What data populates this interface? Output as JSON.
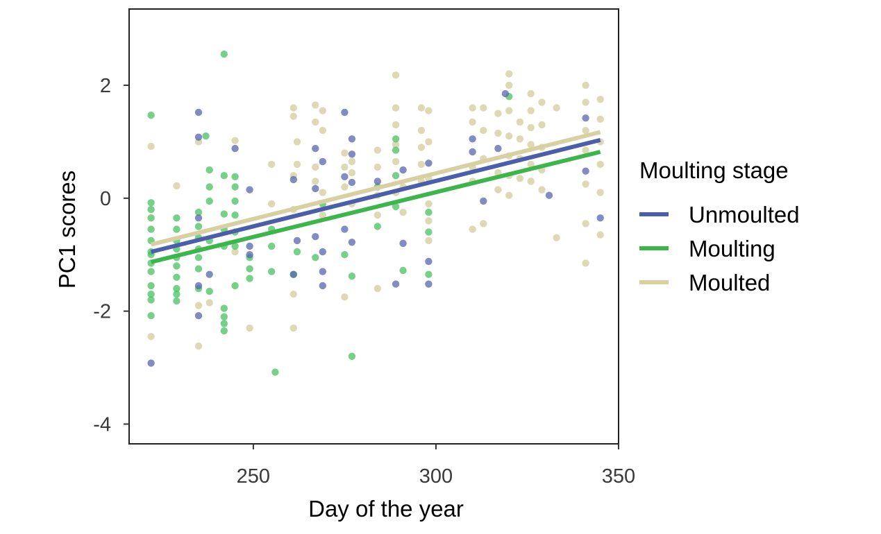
{
  "chart_data": {
    "type": "scatter",
    "title": "",
    "xlabel": "Day of the year",
    "ylabel": "PC1 scores",
    "xlim": [
      216,
      350
    ],
    "ylim": [
      -4.35,
      3.35
    ],
    "x_ticks": [
      250,
      300,
      350
    ],
    "y_ticks": [
      2,
      0,
      -2,
      -4
    ],
    "x_tick_labels": [
      "250",
      "300",
      "350"
    ],
    "y_tick_labels": [
      "2",
      "0",
      "-2",
      "-4"
    ],
    "grid": false,
    "legend": {
      "title": "Moulting stage",
      "position": "right"
    },
    "series": [
      {
        "name": "Unmoulted",
        "color": "#4a5eaa",
        "point_color": "#5565ad",
        "trend": {
          "x": [
            222,
            345
          ],
          "y": [
            -0.95,
            1.03
          ]
        },
        "points": [
          {
            "x": 222,
            "y": -2.92
          },
          {
            "x": 235,
            "y": 1.52
          },
          {
            "x": 235,
            "y": 1.08
          },
          {
            "x": 235,
            "y": -2.08
          },
          {
            "x": 235,
            "y": -1.55
          },
          {
            "x": 235,
            "y": -0.35
          },
          {
            "x": 238,
            "y": -1.35
          },
          {
            "x": 245,
            "y": 0.88
          },
          {
            "x": 249,
            "y": 0.15
          },
          {
            "x": 249,
            "y": -0.85
          },
          {
            "x": 249,
            "y": -1.0
          },
          {
            "x": 261,
            "y": 0.33
          },
          {
            "x": 261,
            "y": -1.35
          },
          {
            "x": 262,
            "y": -0.75
          },
          {
            "x": 267,
            "y": 0.88
          },
          {
            "x": 267,
            "y": 0.17
          },
          {
            "x": 267,
            "y": -0.68
          },
          {
            "x": 269,
            "y": 0.65
          },
          {
            "x": 269,
            "y": -1.55
          },
          {
            "x": 269,
            "y": -1.3
          },
          {
            "x": 269,
            "y": -0.95
          },
          {
            "x": 275,
            "y": 1.52
          },
          {
            "x": 275,
            "y": 0.38
          },
          {
            "x": 275,
            "y": -0.55
          },
          {
            "x": 277,
            "y": 1.05
          },
          {
            "x": 277,
            "y": 0.78
          },
          {
            "x": 277,
            "y": 0.28
          },
          {
            "x": 277,
            "y": -0.78
          },
          {
            "x": 284,
            "y": 0.3
          },
          {
            "x": 289,
            "y": -1.52
          },
          {
            "x": 291,
            "y": 0.5
          },
          {
            "x": 291,
            "y": -0.8
          },
          {
            "x": 298,
            "y": 0.62
          },
          {
            "x": 298,
            "y": -1.12
          },
          {
            "x": 298,
            "y": -1.52
          },
          {
            "x": 310,
            "y": 1.05
          },
          {
            "x": 310,
            "y": 0.82
          },
          {
            "x": 313,
            "y": -0.05
          },
          {
            "x": 317,
            "y": 0.88
          },
          {
            "x": 319,
            "y": 1.85
          },
          {
            "x": 331,
            "y": 0.05
          },
          {
            "x": 341,
            "y": 1.42
          },
          {
            "x": 341,
            "y": 0.48
          },
          {
            "x": 345,
            "y": -0.35
          }
        ]
      },
      {
        "name": "Moulting",
        "color": "#3cb54a",
        "point_color": "#48c060",
        "trend": {
          "x": [
            222,
            345
          ],
          "y": [
            -1.13,
            0.82
          ]
        },
        "points": [
          {
            "x": 222,
            "y": 1.47
          },
          {
            "x": 222,
            "y": -0.08
          },
          {
            "x": 222,
            "y": -0.35
          },
          {
            "x": 222,
            "y": -0.55
          },
          {
            "x": 222,
            "y": -0.75
          },
          {
            "x": 222,
            "y": -0.95
          },
          {
            "x": 222,
            "y": -1.15
          },
          {
            "x": 222,
            "y": -1.3
          },
          {
            "x": 222,
            "y": -1.55
          },
          {
            "x": 222,
            "y": -1.7
          },
          {
            "x": 222,
            "y": -1.8
          },
          {
            "x": 222,
            "y": -2.08
          },
          {
            "x": 222,
            "y": -0.2
          },
          {
            "x": 222,
            "y": -1.0
          },
          {
            "x": 229,
            "y": -0.35
          },
          {
            "x": 229,
            "y": -0.55
          },
          {
            "x": 229,
            "y": -0.75
          },
          {
            "x": 229,
            "y": -0.9
          },
          {
            "x": 229,
            "y": -1.05
          },
          {
            "x": 229,
            "y": -1.2
          },
          {
            "x": 229,
            "y": -1.4
          },
          {
            "x": 229,
            "y": -1.6
          },
          {
            "x": 229,
            "y": -1.82
          },
          {
            "x": 229,
            "y": -1.7
          },
          {
            "x": 235,
            "y": -0.25
          },
          {
            "x": 235,
            "y": -0.5
          },
          {
            "x": 235,
            "y": -0.7
          },
          {
            "x": 235,
            "y": -0.9
          },
          {
            "x": 235,
            "y": -1.05
          },
          {
            "x": 235,
            "y": -1.25
          },
          {
            "x": 235,
            "y": -1.6
          },
          {
            "x": 237,
            "y": 1.1
          },
          {
            "x": 238,
            "y": 0.5
          },
          {
            "x": 238,
            "y": 0.2
          },
          {
            "x": 238,
            "y": -0.05
          },
          {
            "x": 238,
            "y": -0.75
          },
          {
            "x": 238,
            "y": -1.65
          },
          {
            "x": 242,
            "y": 2.55
          },
          {
            "x": 242,
            "y": 0.4
          },
          {
            "x": 242,
            "y": -0.28
          },
          {
            "x": 242,
            "y": -0.55
          },
          {
            "x": 242,
            "y": -0.85
          },
          {
            "x": 242,
            "y": -1.95
          },
          {
            "x": 242,
            "y": -2.1
          },
          {
            "x": 242,
            "y": -2.22
          },
          {
            "x": 242,
            "y": -2.35
          },
          {
            "x": 245,
            "y": 0.38
          },
          {
            "x": 245,
            "y": 0.2
          },
          {
            "x": 245,
            "y": -0.05
          },
          {
            "x": 245,
            "y": -0.3
          },
          {
            "x": 245,
            "y": -0.6
          },
          {
            "x": 245,
            "y": -0.85
          },
          {
            "x": 245,
            "y": -1.55
          },
          {
            "x": 249,
            "y": -1.05
          },
          {
            "x": 249,
            "y": -1.25
          },
          {
            "x": 249,
            "y": -1.42
          },
          {
            "x": 255,
            "y": -0.55
          },
          {
            "x": 255,
            "y": -0.85
          },
          {
            "x": 255,
            "y": -1.3
          },
          {
            "x": 256,
            "y": -3.08
          },
          {
            "x": 261,
            "y": -1.35
          },
          {
            "x": 262,
            "y": -0.95
          },
          {
            "x": 267,
            "y": -1.05
          },
          {
            "x": 269,
            "y": -0.1
          },
          {
            "x": 275,
            "y": -1.0
          },
          {
            "x": 277,
            "y": -2.8
          },
          {
            "x": 277,
            "y": -1.38
          },
          {
            "x": 284,
            "y": 0.2
          },
          {
            "x": 284,
            "y": -0.5
          },
          {
            "x": 289,
            "y": 1.05
          },
          {
            "x": 289,
            "y": 0.85
          },
          {
            "x": 289,
            "y": 0.4
          },
          {
            "x": 289,
            "y": -0.15
          },
          {
            "x": 291,
            "y": -1.28
          },
          {
            "x": 298,
            "y": -0.25
          },
          {
            "x": 298,
            "y": -0.6
          },
          {
            "x": 298,
            "y": -1.35
          },
          {
            "x": 320,
            "y": 1.8
          }
        ]
      },
      {
        "name": "Moulted",
        "color": "#d8d0a0",
        "point_color": "#d8d2a8",
        "trend": {
          "x": [
            222,
            345
          ],
          "y": [
            -0.82,
            1.17
          ]
        },
        "points": [
          {
            "x": 222,
            "y": 0.92
          },
          {
            "x": 222,
            "y": -2.45
          },
          {
            "x": 229,
            "y": 0.22
          },
          {
            "x": 235,
            "y": 1.0
          },
          {
            "x": 235,
            "y": -2.62
          },
          {
            "x": 235,
            "y": -1.9
          },
          {
            "x": 238,
            "y": -1.85
          },
          {
            "x": 245,
            "y": 1.02
          },
          {
            "x": 245,
            "y": -0.95
          },
          {
            "x": 249,
            "y": -2.3
          },
          {
            "x": 255,
            "y": 0.6
          },
          {
            "x": 255,
            "y": -0.1
          },
          {
            "x": 261,
            "y": 1.6
          },
          {
            "x": 261,
            "y": 1.45
          },
          {
            "x": 261,
            "y": 0.4
          },
          {
            "x": 261,
            "y": -0.2
          },
          {
            "x": 261,
            "y": -1.7
          },
          {
            "x": 261,
            "y": -2.3
          },
          {
            "x": 262,
            "y": 0.6
          },
          {
            "x": 262,
            "y": 1.0
          },
          {
            "x": 267,
            "y": 1.65
          },
          {
            "x": 267,
            "y": 1.35
          },
          {
            "x": 267,
            "y": 0.55
          },
          {
            "x": 267,
            "y": 0.3
          },
          {
            "x": 269,
            "y": 1.55
          },
          {
            "x": 269,
            "y": 1.2
          },
          {
            "x": 269,
            "y": 0.1
          },
          {
            "x": 269,
            "y": -0.3
          },
          {
            "x": 275,
            "y": 0.8
          },
          {
            "x": 275,
            "y": 0.55
          },
          {
            "x": 275,
            "y": 0.2
          },
          {
            "x": 275,
            "y": -1.75
          },
          {
            "x": 277,
            "y": 0.65
          },
          {
            "x": 277,
            "y": 0.45
          },
          {
            "x": 277,
            "y": -0.1
          },
          {
            "x": 284,
            "y": 0.85
          },
          {
            "x": 284,
            "y": 0.55
          },
          {
            "x": 284,
            "y": 0.05
          },
          {
            "x": 284,
            "y": -0.3
          },
          {
            "x": 284,
            "y": -1.6
          },
          {
            "x": 289,
            "y": 2.18
          },
          {
            "x": 289,
            "y": 1.6
          },
          {
            "x": 289,
            "y": 1.3
          },
          {
            "x": 289,
            "y": 0.95
          },
          {
            "x": 289,
            "y": 0.65
          },
          {
            "x": 289,
            "y": 0.1
          },
          {
            "x": 291,
            "y": 0.2
          },
          {
            "x": 291,
            "y": -0.25
          },
          {
            "x": 296,
            "y": 1.6
          },
          {
            "x": 296,
            "y": 1.2
          },
          {
            "x": 296,
            "y": 0.9
          },
          {
            "x": 296,
            "y": 0.6
          },
          {
            "x": 296,
            "y": 0.3
          },
          {
            "x": 298,
            "y": 1.55
          },
          {
            "x": 298,
            "y": 1.0
          },
          {
            "x": 298,
            "y": 0.35
          },
          {
            "x": 298,
            "y": -0.1
          },
          {
            "x": 298,
            "y": -0.4
          },
          {
            "x": 298,
            "y": -0.75
          },
          {
            "x": 310,
            "y": 1.6
          },
          {
            "x": 310,
            "y": 1.35
          },
          {
            "x": 310,
            "y": 0.55
          },
          {
            "x": 310,
            "y": 0.3
          },
          {
            "x": 310,
            "y": -0.55
          },
          {
            "x": 313,
            "y": 1.6
          },
          {
            "x": 313,
            "y": 1.2
          },
          {
            "x": 313,
            "y": 0.7
          },
          {
            "x": 313,
            "y": -0.45
          },
          {
            "x": 317,
            "y": 1.5
          },
          {
            "x": 317,
            "y": 1.15
          },
          {
            "x": 317,
            "y": 0.45
          },
          {
            "x": 317,
            "y": 0.15
          },
          {
            "x": 320,
            "y": 2.2
          },
          {
            "x": 320,
            "y": 2.0
          },
          {
            "x": 320,
            "y": 1.55
          },
          {
            "x": 320,
            "y": 1.1
          },
          {
            "x": 320,
            "y": 0.75
          },
          {
            "x": 320,
            "y": 0.4
          },
          {
            "x": 320,
            "y": 0.05
          },
          {
            "x": 323,
            "y": 1.35
          },
          {
            "x": 323,
            "y": 1.05
          },
          {
            "x": 323,
            "y": 0.7
          },
          {
            "x": 323,
            "y": 0.35
          },
          {
            "x": 326,
            "y": 1.85
          },
          {
            "x": 326,
            "y": 1.55
          },
          {
            "x": 326,
            "y": 1.25
          },
          {
            "x": 326,
            "y": 0.95
          },
          {
            "x": 326,
            "y": 0.6
          },
          {
            "x": 326,
            "y": 0.3
          },
          {
            "x": 329,
            "y": 1.7
          },
          {
            "x": 329,
            "y": 1.3
          },
          {
            "x": 329,
            "y": 0.9
          },
          {
            "x": 329,
            "y": 0.5
          },
          {
            "x": 329,
            "y": 0.15
          },
          {
            "x": 333,
            "y": 1.6
          },
          {
            "x": 333,
            "y": -0.7
          },
          {
            "x": 341,
            "y": 2.0
          },
          {
            "x": 341,
            "y": 1.7
          },
          {
            "x": 341,
            "y": 1.2
          },
          {
            "x": 341,
            "y": 0.85
          },
          {
            "x": 341,
            "y": 0.25
          },
          {
            "x": 341,
            "y": -0.45
          },
          {
            "x": 341,
            "y": -1.15
          },
          {
            "x": 345,
            "y": 1.75
          },
          {
            "x": 345,
            "y": 1.4
          },
          {
            "x": 345,
            "y": 1.0
          },
          {
            "x": 345,
            "y": 0.6
          },
          {
            "x": 345,
            "y": 0.1
          },
          {
            "x": 345,
            "y": -0.65
          }
        ]
      }
    ]
  }
}
